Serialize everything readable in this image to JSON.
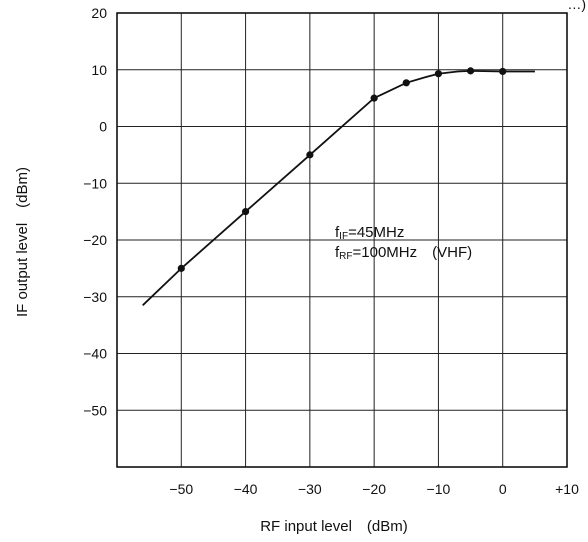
{
  "chart_data": {
    "type": "line",
    "title": "",
    "xlabel": "RF input level (dBm)",
    "ylabel": "IF output level (dBm)",
    "xlim": [
      -60,
      10
    ],
    "ylim": [
      -60,
      20
    ],
    "x_ticks": [
      -50,
      -40,
      -30,
      -20,
      -10,
      0,
      10
    ],
    "x_tick_labels": [
      "−50",
      "−40",
      "−30",
      "−20",
      "−10",
      "0",
      "+10"
    ],
    "y_ticks": [
      20,
      10,
      0,
      -10,
      -20,
      -30,
      -40,
      -50
    ],
    "y_tick_labels": [
      "20",
      "10",
      "0",
      "−10",
      "−20",
      "−30",
      "−40",
      "−50"
    ],
    "grid": true,
    "series": [
      {
        "curve": [
          [
            -56,
            -31.5
          ],
          [
            -50,
            -25
          ],
          [
            -40,
            -15
          ],
          [
            -30,
            -5
          ],
          [
            -20,
            5
          ],
          [
            -15,
            7.7
          ],
          [
            -12,
            8.7
          ],
          [
            -10,
            9.3
          ],
          [
            -7,
            9.7
          ],
          [
            -5,
            9.8
          ],
          [
            0,
            9.7
          ],
          [
            5,
            9.7
          ]
        ],
        "markers": [
          [
            -50,
            -25
          ],
          [
            -40,
            -15
          ],
          [
            -30,
            -5
          ],
          [
            -20,
            5
          ],
          [
            -15,
            7.7
          ],
          [
            -10,
            9.3
          ],
          [
            -5,
            9.8
          ],
          [
            0,
            9.7
          ]
        ]
      }
    ],
    "annotations": {
      "line1_main": "f",
      "line1_sub": "IF",
      "line1_rest": "=45MHz",
      "line2_main": "f",
      "line2_sub": "RF",
      "line2_rest": "=100MHz (VHF)"
    },
    "top_right_fragment": "…)"
  }
}
